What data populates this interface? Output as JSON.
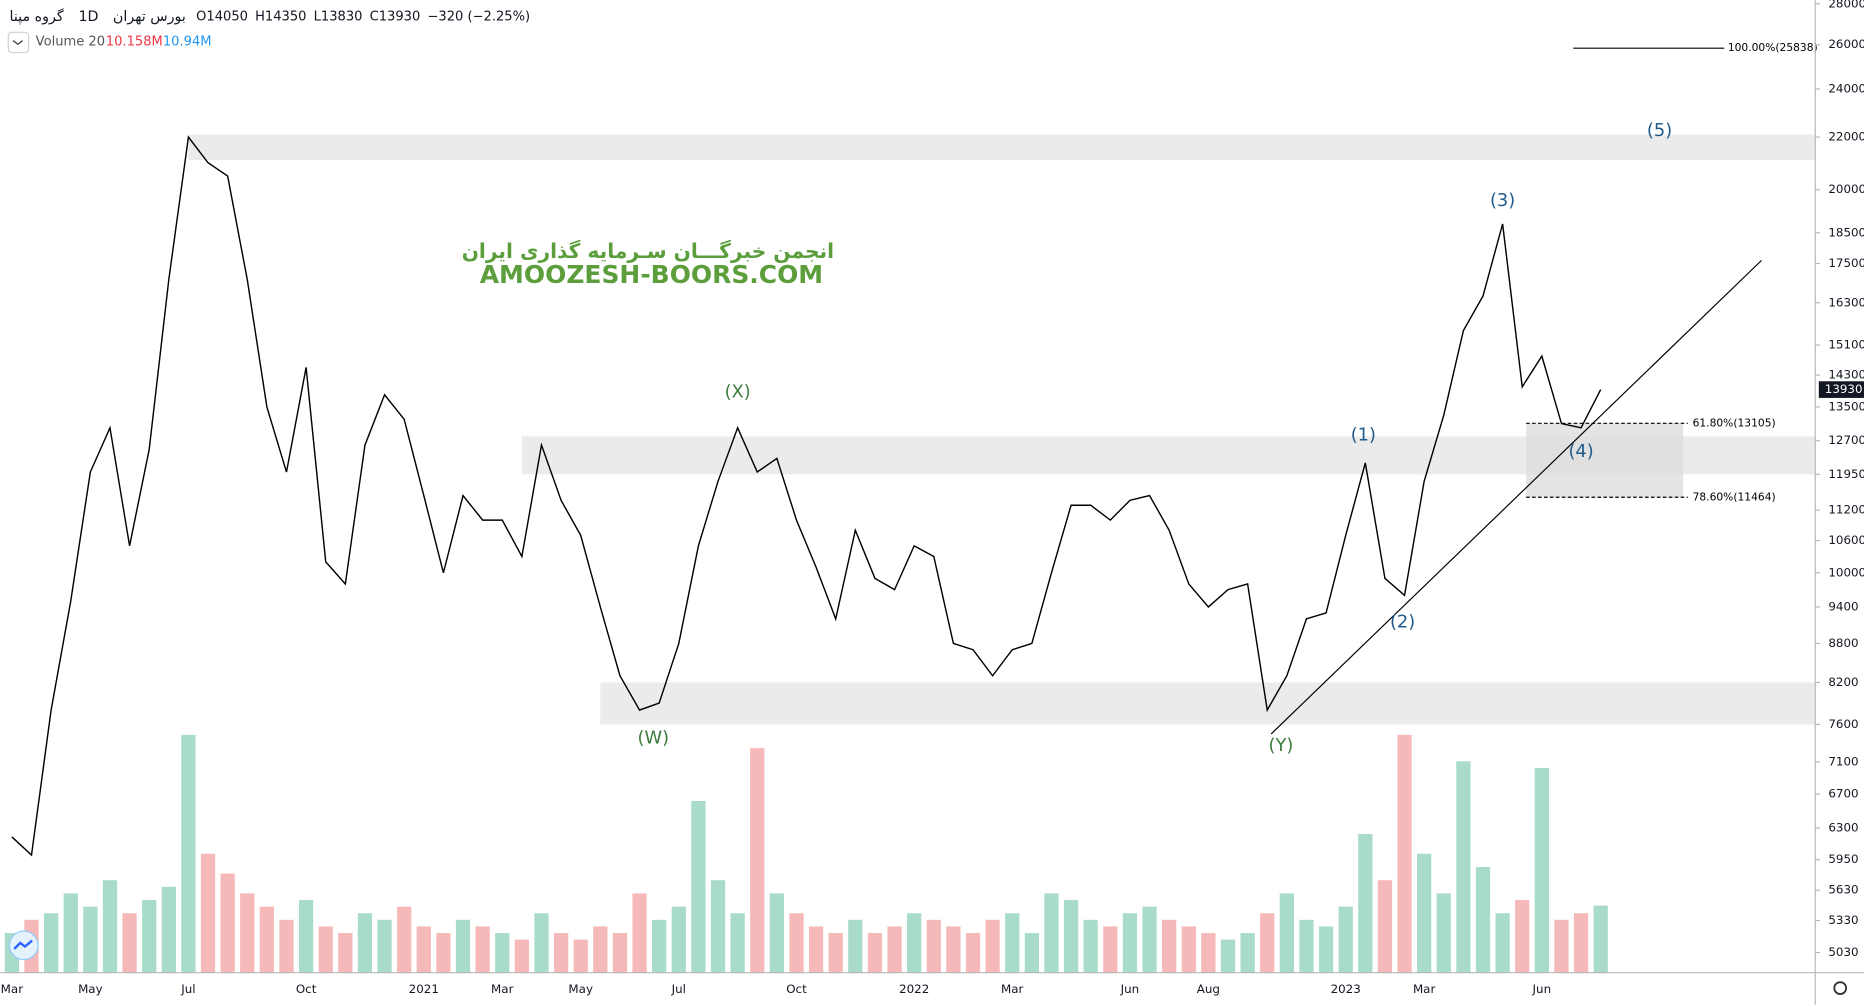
{
  "chart_data": {
    "type": "line",
    "title": "گروه مپنا",
    "interval": "1D",
    "exchange": "بورس تهران",
    "ohlc": [
      "O14050",
      "H14350",
      "L13830",
      "C13930",
      "−320 (−2.25%)"
    ],
    "watermark": [
      "انجمن خبرگـــان سـرمایه گذاری ایران",
      "AMOOZESH-BOORS.COM"
    ],
    "categories": [
      "Mar",
      null,
      null,
      null,
      "May",
      null,
      null,
      null,
      null,
      "Jul",
      null,
      null,
      null,
      null,
      null,
      "Oct",
      null,
      null,
      null,
      null,
      null,
      "2021",
      null,
      null,
      null,
      "Mar",
      null,
      null,
      null,
      "May",
      null,
      null,
      null,
      null,
      "Jul",
      null,
      null,
      null,
      null,
      null,
      "Oct",
      null,
      null,
      null,
      null,
      null,
      "2022",
      null,
      null,
      null,
      null,
      "Mar",
      null,
      null,
      null,
      null,
      null,
      "Jun",
      null,
      null,
      null,
      "Aug",
      null,
      null,
      null,
      null,
      null,
      null,
      "2023",
      null,
      null,
      null,
      "Mar",
      null,
      null,
      null,
      null,
      null,
      "Jun",
      null,
      null,
      null
    ],
    "series": [
      {
        "color": "#000000",
        "values": [
          6200,
          6000,
          7800,
          9500,
          12000,
          13000,
          10500,
          12500,
          17000,
          22000,
          21000,
          20500,
          17000,
          13500,
          12000,
          14500,
          10200,
          9800,
          12600,
          13800,
          13200,
          11500,
          10000,
          11500,
          11000,
          11000,
          10300,
          12600,
          11400,
          10700,
          9400,
          8300,
          7800,
          7900,
          8800,
          10500,
          11800,
          13000,
          12000,
          12300,
          11000,
          10100,
          9200,
          10800,
          9900,
          9700,
          10500,
          10300,
          8800,
          8700,
          8300,
          8700,
          8800,
          10000,
          11300,
          11300,
          11000,
          11400,
          11500,
          10800,
          9800,
          9400,
          9700,
          9800,
          7800,
          8300,
          9200,
          9300,
          10700,
          12200,
          9900,
          9600,
          11800,
          13300,
          15500,
          16500,
          18800,
          14000,
          14800,
          13100,
          13000,
          13930
        ]
      }
    ],
    "volume": {
      "name": "Volume 20",
      "up_color": "#a8dcc9",
      "down_color": "#f6b9b9",
      "vlim": [
        0,
        36
      ],
      "values": [
        6,
        8,
        9,
        12,
        10,
        14,
        9,
        11,
        13,
        36,
        18,
        15,
        12,
        10,
        8,
        11,
        7,
        6,
        9,
        8,
        10,
        7,
        6,
        8,
        7,
        6,
        5,
        9,
        6,
        5,
        7,
        6,
        12,
        8,
        10,
        26,
        14,
        9,
        34,
        12,
        9,
        7,
        6,
        8,
        6,
        7,
        9,
        8,
        7,
        6,
        8,
        9,
        6,
        12,
        11,
        8,
        7,
        9,
        10,
        8,
        7,
        6,
        5,
        6,
        9,
        12,
        8,
        7,
        10,
        21,
        14,
        36,
        18,
        12,
        32,
        16,
        9,
        11,
        31,
        8,
        9,
        10.158
      ],
      "value_label": "10.158M",
      "ma_label": "10.94M"
    },
    "log_scale": true,
    "ylim": [
      4850,
      28180
    ],
    "yticks": [
      28000,
      26000,
      24000,
      22000,
      20000,
      18500,
      17500,
      16300,
      15100,
      14300,
      13500,
      12700,
      11950,
      11200,
      10600,
      10000,
      9400,
      8800,
      8200,
      7600,
      7100,
      6700,
      6300,
      5950,
      5630,
      5330,
      5030
    ],
    "zones": [
      {
        "x0": 9,
        "from": 21100,
        "to": 22100,
        "color": "#ebebeb"
      },
      {
        "x0": 26,
        "from": 11950,
        "to": 12800,
        "color": "#ebebeb"
      },
      {
        "x0": 30,
        "from": 7600,
        "to": 8200,
        "color": "#ebebeb"
      }
    ],
    "trendline": {
      "x": [
        64.2,
        89.2
      ],
      "y": [
        7470,
        17600
      ],
      "color": "#000000"
    },
    "fib": {
      "x0": 77.2,
      "x1": 85.2,
      "color": "#dddddd",
      "levels": [
        {
          "value": 13105,
          "label": "61.80%(13105)"
        },
        {
          "value": 11464,
          "label": "78.60%(11464)"
        }
      ],
      "extension": {
        "value": 25838,
        "label": "100.00%(25838)",
        "x0": 79.6,
        "x1": 87.3
      }
    },
    "wave_labels": [
      {
        "text": "(W)",
        "x": 32.7,
        "y": 7410,
        "color": "#3d7d3d"
      },
      {
        "text": "(X)",
        "x": 37,
        "y": 13860,
        "color": "#3d7d3d"
      },
      {
        "text": "(Y)",
        "x": 64.7,
        "y": 7310,
        "color": "#3d7d3d"
      },
      {
        "text": "(1)",
        "x": 68.9,
        "y": 12820,
        "color": "#1f5b8c"
      },
      {
        "text": "(2)",
        "x": 70.9,
        "y": 9140,
        "color": "#1f5b8c"
      },
      {
        "text": "(3)",
        "x": 76,
        "y": 19600,
        "color": "#1f5b8c"
      },
      {
        "text": "(4)",
        "x": 80,
        "y": 12440,
        "color": "#1f5b8c"
      },
      {
        "text": "(5)",
        "x": 84,
        "y": 22250,
        "color": "#1f5b8c"
      }
    ]
  }
}
